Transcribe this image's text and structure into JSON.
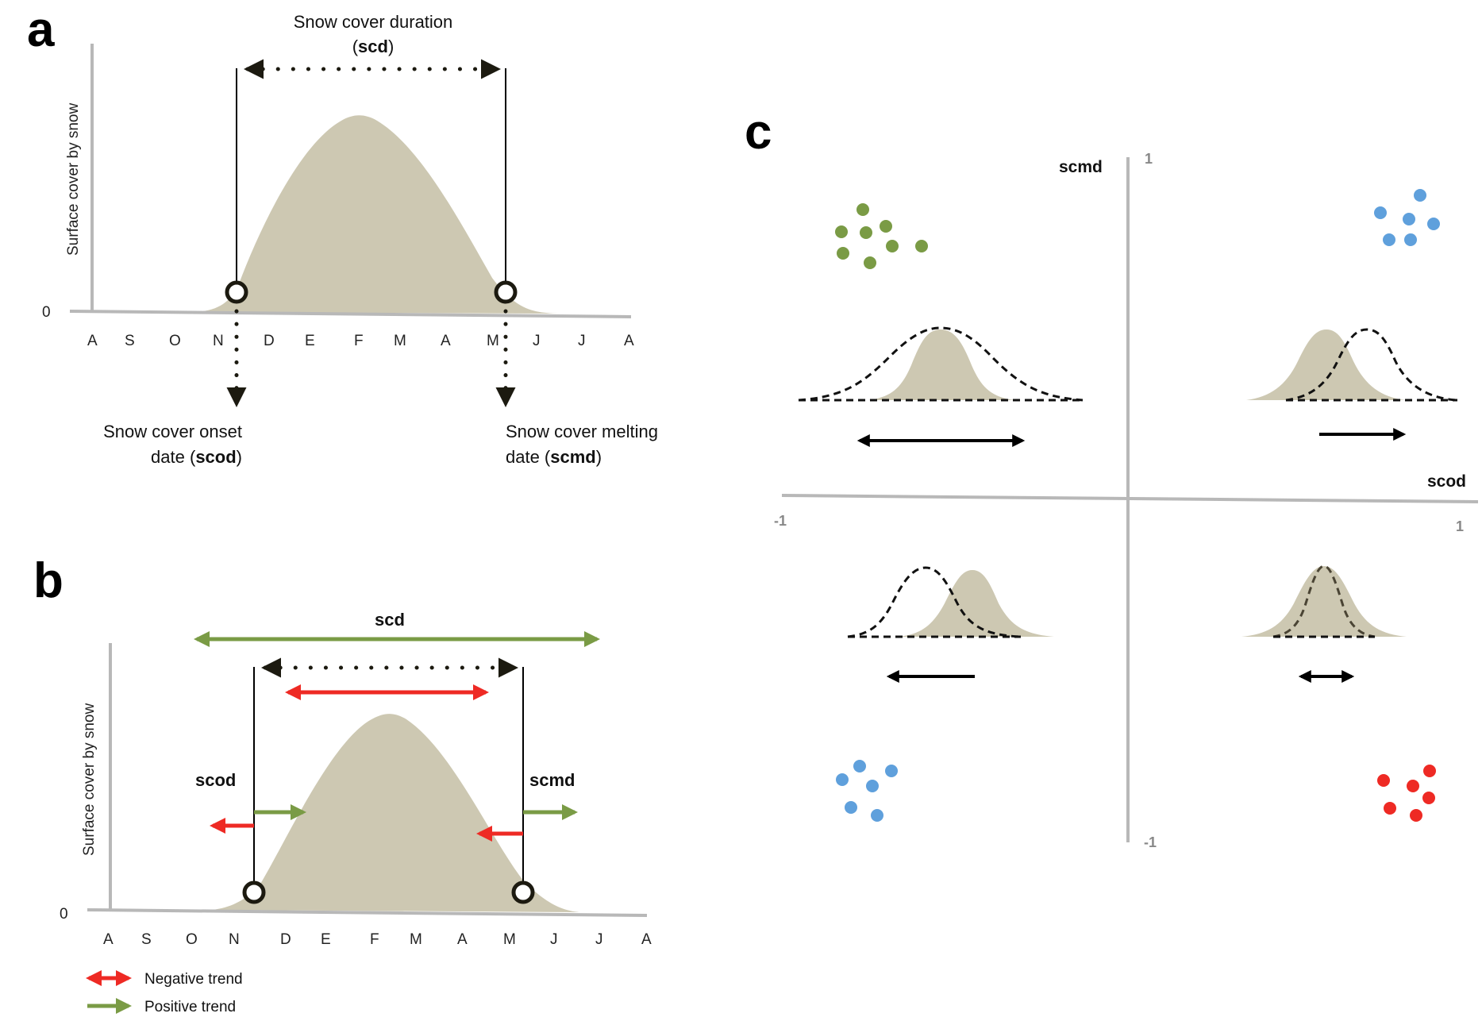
{
  "colors": {
    "snow_fill": "#cdc8b2",
    "axis_gray": "#b8b8b8",
    "negative_red": "#ee2a24",
    "positive_green": "#7a9b45",
    "blue": "#5fa0dc",
    "dark": "#1c1a10"
  },
  "months": [
    "A",
    "S",
    "O",
    "N",
    "D",
    "E",
    "F",
    "M",
    "A",
    "M",
    "J",
    "J",
    "A"
  ],
  "panel_a": {
    "letter": "a",
    "ylabel": "Surface cover by snow",
    "zero": "0",
    "duration_label_1": "Snow cover duration",
    "duration_label_2_open": "(",
    "duration_label_2_bold": "scd",
    "duration_label_2_close": ")",
    "onset_label_1": "Snow cover onset",
    "onset_label_2_pre": "date (",
    "onset_label_2_bold": "scod",
    "onset_label_2_post": ")",
    "melt_label_1": "Snow cover melting",
    "melt_label_2_pre": "date (",
    "melt_label_2_bold": "scmd",
    "melt_label_2_post": ")"
  },
  "panel_b": {
    "letter": "b",
    "ylabel": "Surface cover by snow",
    "zero": "0",
    "scd_label": "scd",
    "scod_label": "scod",
    "scmd_label": "scmd",
    "legend_negative": "Negative trend",
    "legend_positive": "Positive trend"
  },
  "panel_c": {
    "letter": "c",
    "y_axis_label": "scmd",
    "x_axis_label": "scod",
    "y_max": "1",
    "y_min": "-1",
    "x_min": "-1",
    "x_max": "1"
  }
}
